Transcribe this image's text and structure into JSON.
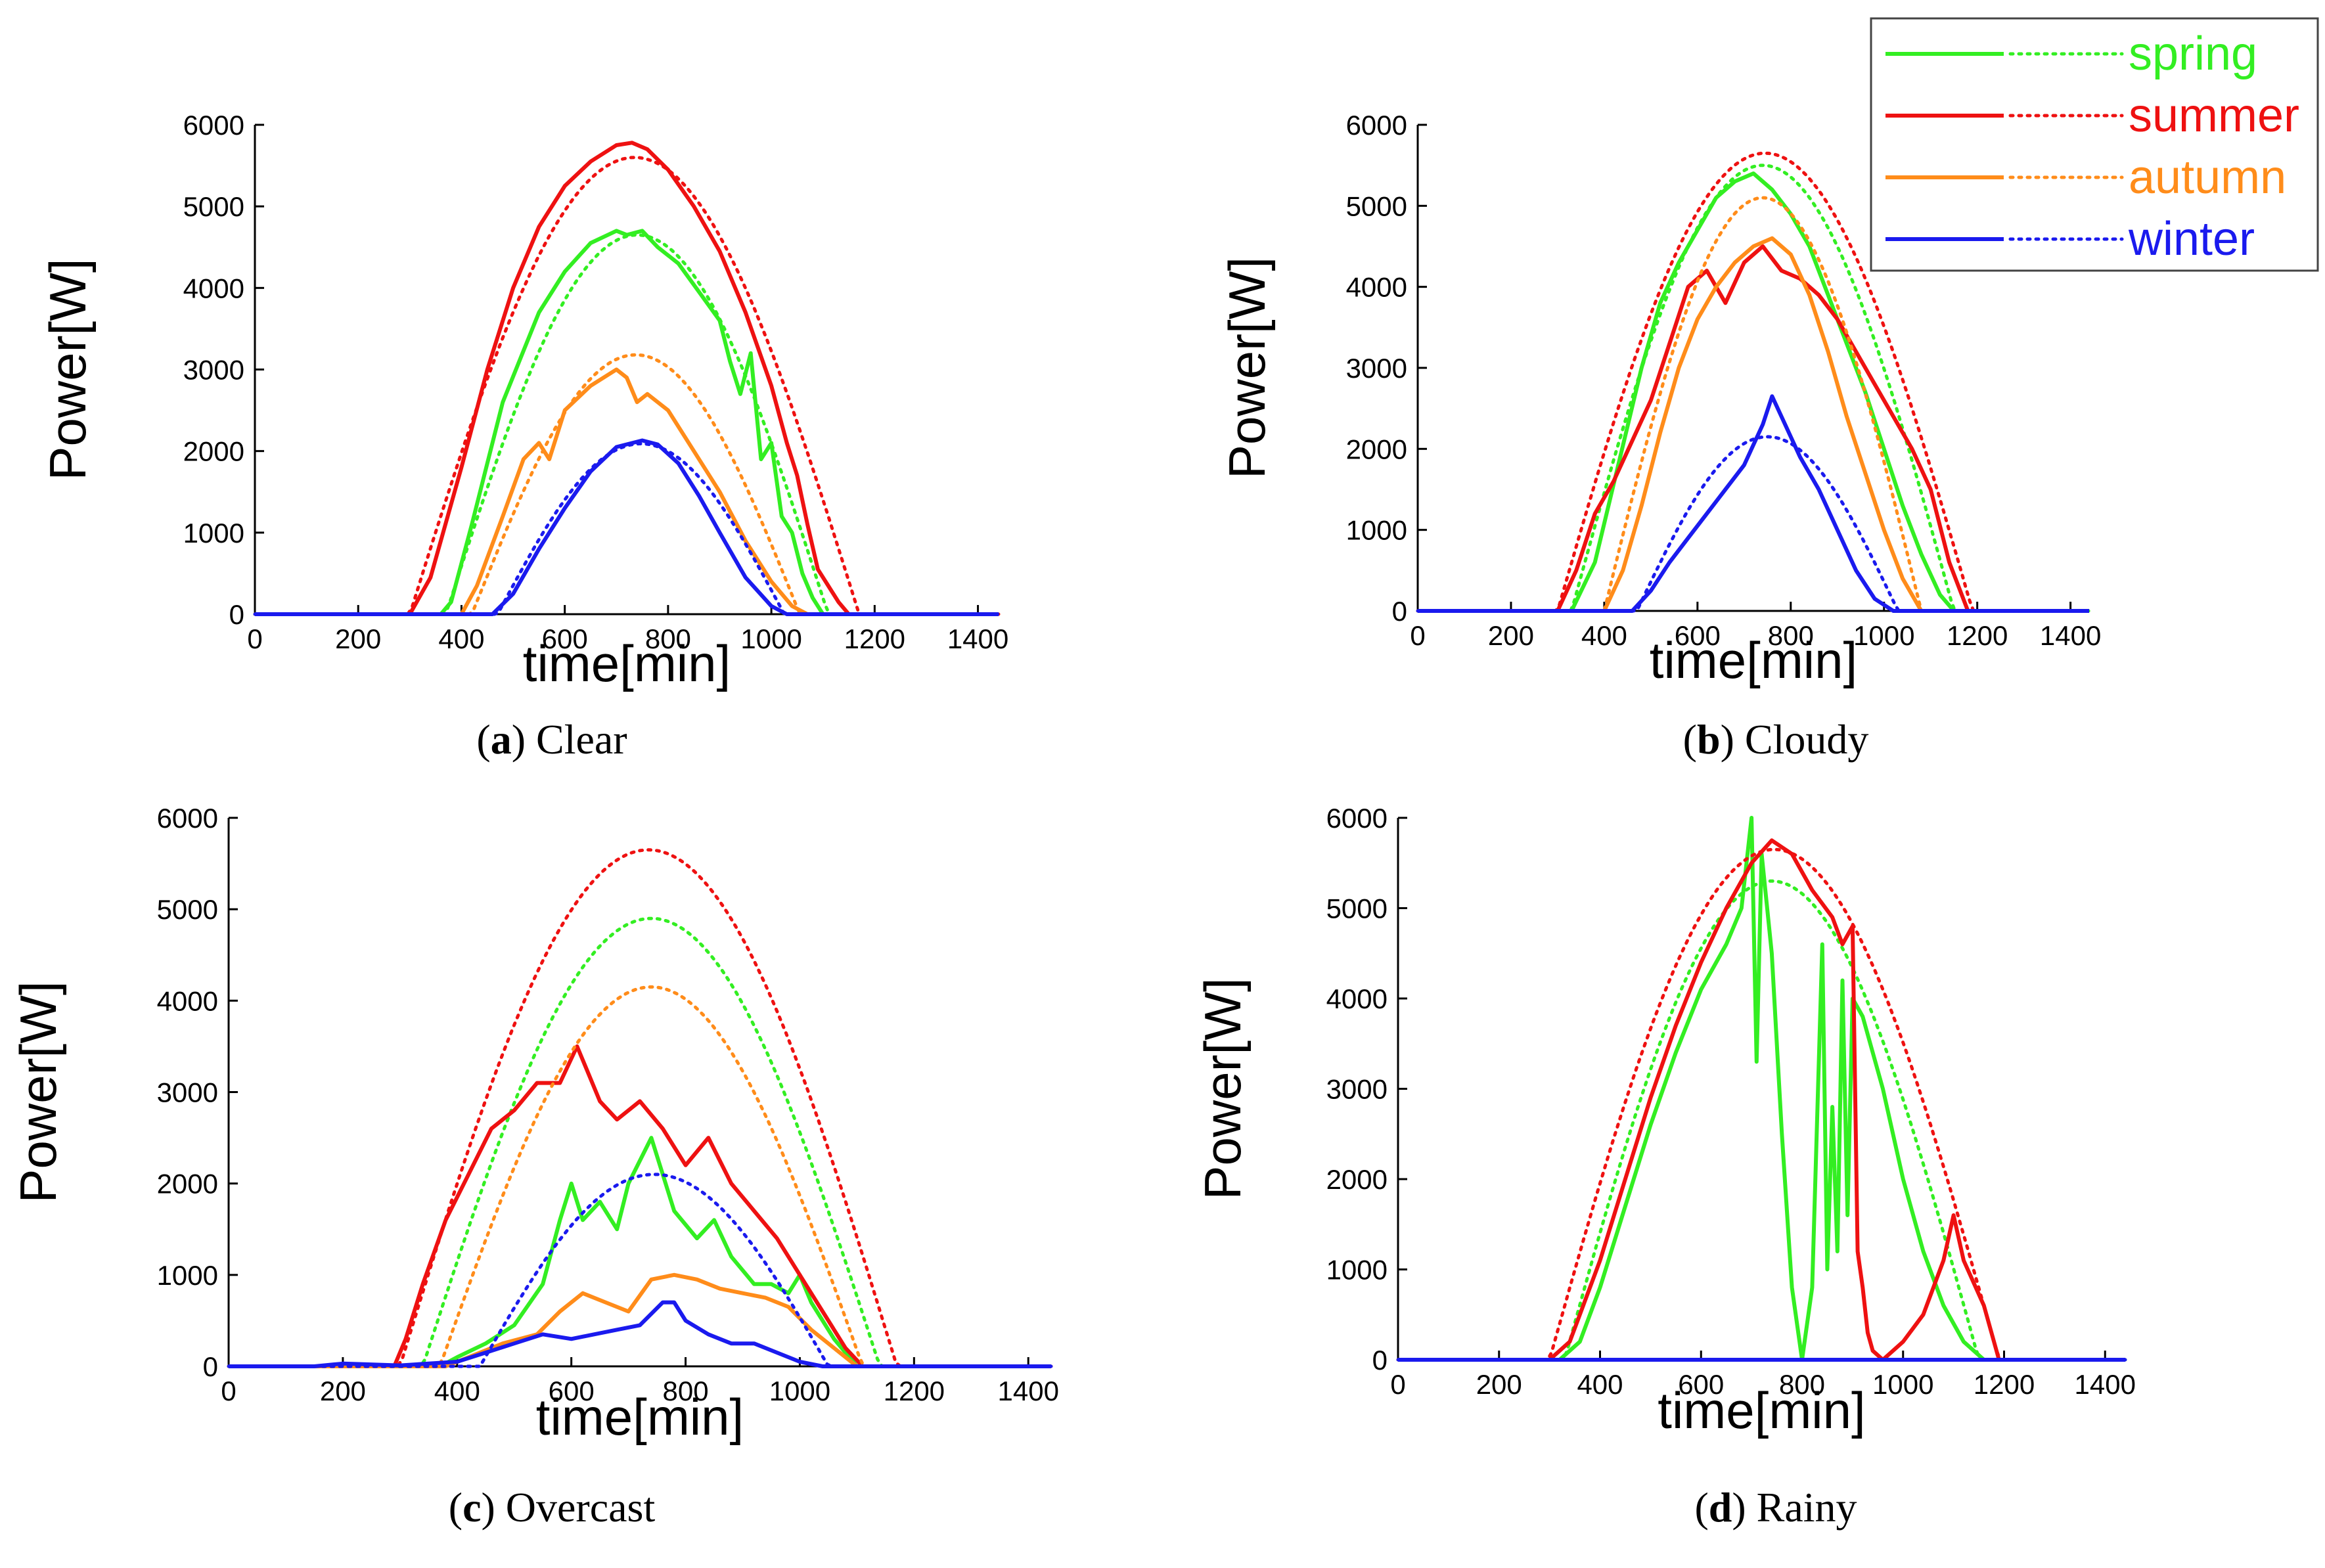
{
  "colors": {
    "spring": "#33ee22",
    "summer": "#ee1111",
    "autumn": "#ff8c1a",
    "winter": "#1a1aee",
    "axis": "#000000"
  },
  "legend": {
    "position": "top-right",
    "entries": [
      {
        "label": "spring",
        "color": "#33ee22"
      },
      {
        "label": "summer",
        "color": "#ee1111"
      },
      {
        "label": "autumn",
        "color": "#ff8c1a"
      },
      {
        "label": "winter",
        "color": "#1a1aee"
      }
    ]
  },
  "chart_data": [
    {
      "id": "a",
      "type": "line",
      "caption_letter": "a",
      "caption_text": "Clear",
      "xlabel": "time[min]",
      "ylabel": "Power[W]",
      "xlim": [
        0,
        1440
      ],
      "ylim": [
        0,
        6000
      ],
      "xticks": [
        0,
        200,
        400,
        600,
        800,
        1000,
        1200,
        1400
      ],
      "yticks": [
        0,
        1000,
        2000,
        3000,
        4000,
        5000,
        6000
      ],
      "series": [
        {
          "name": "spring measured",
          "season": "spring",
          "style": "solid",
          "x": [
            0,
            360,
            380,
            420,
            480,
            550,
            600,
            650,
            700,
            720,
            750,
            780,
            820,
            860,
            900,
            920,
            940,
            960,
            980,
            1000,
            1020,
            1040,
            1060,
            1080,
            1100,
            1440
          ],
          "y": [
            0,
            0,
            150,
            1100,
            2600,
            3700,
            4200,
            4550,
            4700,
            4650,
            4700,
            4500,
            4300,
            3950,
            3600,
            3100,
            2700,
            3200,
            1900,
            2100,
            1200,
            1000,
            500,
            200,
            0,
            0
          ]
        },
        {
          "name": "spring expected",
          "season": "spring",
          "style": "dotted",
          "peak": 4650,
          "t0": 370,
          "t1": 1110
        },
        {
          "name": "summer measured",
          "season": "summer",
          "style": "solid",
          "x": [
            0,
            300,
            340,
            400,
            450,
            500,
            550,
            600,
            650,
            700,
            730,
            760,
            800,
            850,
            900,
            950,
            1000,
            1030,
            1050,
            1070,
            1090,
            1110,
            1130,
            1150,
            1440
          ],
          "y": [
            0,
            0,
            450,
            1800,
            3000,
            4000,
            4750,
            5250,
            5550,
            5750,
            5780,
            5700,
            5450,
            5000,
            4450,
            3700,
            2800,
            2100,
            1700,
            1100,
            550,
            350,
            150,
            0,
            0
          ]
        },
        {
          "name": "summer expected",
          "season": "summer",
          "style": "dotted",
          "peak": 5600,
          "t0": 300,
          "t1": 1170
        },
        {
          "name": "autumn measured",
          "season": "autumn",
          "style": "solid",
          "x": [
            0,
            400,
            430,
            480,
            520,
            550,
            570,
            600,
            650,
            700,
            720,
            740,
            760,
            800,
            850,
            900,
            950,
            1000,
            1040,
            1070,
            1440
          ],
          "y": [
            0,
            0,
            350,
            1200,
            1900,
            2100,
            1900,
            2500,
            2800,
            3000,
            2900,
            2600,
            2700,
            2500,
            2000,
            1500,
            900,
            400,
            100,
            0,
            0
          ]
        },
        {
          "name": "autumn expected",
          "season": "autumn",
          "style": "dotted",
          "peak": 3180,
          "t0": 420,
          "t1": 1055
        },
        {
          "name": "winter measured",
          "season": "winter",
          "style": "solid",
          "x": [
            0,
            460,
            500,
            550,
            600,
            650,
            700,
            750,
            780,
            820,
            860,
            900,
            950,
            1000,
            1030,
            1440
          ],
          "y": [
            0,
            0,
            250,
            800,
            1300,
            1750,
            2050,
            2130,
            2080,
            1850,
            1450,
            1000,
            450,
            100,
            0,
            0
          ]
        },
        {
          "name": "winter expected",
          "season": "winter",
          "style": "dotted",
          "peak": 2090,
          "t0": 470,
          "t1": 1025
        }
      ]
    },
    {
      "id": "b",
      "type": "line",
      "caption_letter": "b",
      "caption_text": "Cloudy",
      "xlabel": "time[min]",
      "ylabel": "Power[W]",
      "xlim": [
        0,
        1440
      ],
      "ylim": [
        0,
        6000
      ],
      "xticks": [
        0,
        200,
        400,
        600,
        800,
        1000,
        1200,
        1400
      ],
      "yticks": [
        0,
        1000,
        2000,
        3000,
        4000,
        5000,
        6000
      ],
      "series": [
        {
          "name": "spring measured",
          "season": "spring",
          "style": "solid",
          "x": [
            0,
            330,
            380,
            430,
            480,
            520,
            560,
            600,
            640,
            680,
            720,
            760,
            800,
            840,
            880,
            920,
            960,
            1000,
            1040,
            1080,
            1120,
            1150,
            1440
          ],
          "y": [
            0,
            0,
            600,
            1800,
            3000,
            3800,
            4300,
            4700,
            5100,
            5300,
            5400,
            5200,
            4900,
            4500,
            3900,
            3300,
            2700,
            2000,
            1300,
            700,
            200,
            0,
            0
          ]
        },
        {
          "name": "spring expected",
          "season": "spring",
          "style": "dotted",
          "peak": 5500,
          "t0": 330,
          "t1": 1150
        },
        {
          "name": "summer measured",
          "season": "summer",
          "style": "solid",
          "x": [
            0,
            300,
            340,
            380,
            420,
            460,
            500,
            540,
            580,
            620,
            660,
            700,
            740,
            780,
            820,
            860,
            900,
            940,
            980,
            1020,
            1060,
            1100,
            1140,
            1180,
            1440
          ],
          "y": [
            0,
            0,
            500,
            1200,
            1600,
            2100,
            2600,
            3300,
            4000,
            4200,
            3800,
            4300,
            4500,
            4200,
            4100,
            3900,
            3600,
            3200,
            2800,
            2400,
            2000,
            1500,
            600,
            0,
            0
          ]
        },
        {
          "name": "summer expected",
          "season": "summer",
          "style": "dotted",
          "peak": 5650,
          "t0": 300,
          "t1": 1190
        },
        {
          "name": "autumn measured",
          "season": "autumn",
          "style": "solid",
          "x": [
            0,
            400,
            440,
            480,
            520,
            560,
            600,
            640,
            680,
            720,
            760,
            800,
            840,
            880,
            920,
            960,
            1000,
            1040,
            1080,
            1440
          ],
          "y": [
            0,
            0,
            500,
            1300,
            2200,
            3000,
            3600,
            4000,
            4300,
            4500,
            4600,
            4400,
            3900,
            3200,
            2400,
            1700,
            1000,
            400,
            0,
            0
          ]
        },
        {
          "name": "autumn expected",
          "season": "autumn",
          "style": "dotted",
          "peak": 5100,
          "t0": 400,
          "t1": 1080
        },
        {
          "name": "winter measured",
          "season": "winter",
          "style": "solid",
          "x": [
            0,
            460,
            500,
            540,
            580,
            620,
            660,
            700,
            740,
            760,
            780,
            820,
            860,
            900,
            940,
            980,
            1020,
            1440
          ],
          "y": [
            0,
            0,
            250,
            600,
            900,
            1200,
            1500,
            1800,
            2300,
            2650,
            2400,
            1900,
            1500,
            1000,
            500,
            150,
            0,
            0
          ]
        },
        {
          "name": "winter expected",
          "season": "winter",
          "style": "dotted",
          "peak": 2150,
          "t0": 470,
          "t1": 1030
        }
      ]
    },
    {
      "id": "c",
      "type": "line",
      "caption_letter": "c",
      "caption_text": "Overcast",
      "xlabel": "time[min]",
      "ylabel": "Power[W]",
      "xlim": [
        0,
        1440
      ],
      "ylim": [
        0,
        6000
      ],
      "xticks": [
        0,
        200,
        400,
        600,
        800,
        1000,
        1200,
        1400
      ],
      "yticks": [
        0,
        1000,
        2000,
        3000,
        4000,
        5000,
        6000
      ],
      "series": [
        {
          "name": "spring measured",
          "season": "spring",
          "style": "solid",
          "x": [
            0,
            370,
            400,
            450,
            500,
            550,
            580,
            600,
            620,
            650,
            680,
            700,
            740,
            780,
            820,
            850,
            880,
            920,
            950,
            980,
            1000,
            1020,
            1060,
            1100,
            1440
          ],
          "y": [
            0,
            0,
            100,
            250,
            450,
            900,
            1600,
            2000,
            1600,
            1800,
            1500,
            2000,
            2500,
            1700,
            1400,
            1600,
            1200,
            900,
            900,
            800,
            1000,
            700,
            300,
            0,
            0
          ]
        },
        {
          "name": "spring expected",
          "season": "spring",
          "style": "dotted",
          "peak": 4900,
          "t0": 340,
          "t1": 1140
        },
        {
          "name": "summer measured",
          "season": "summer",
          "style": "solid",
          "x": [
            0,
            290,
            310,
            340,
            380,
            420,
            460,
            500,
            540,
            580,
            610,
            630,
            650,
            680,
            720,
            760,
            800,
            840,
            880,
            920,
            960,
            1000,
            1040,
            1080,
            1110,
            1440
          ],
          "y": [
            0,
            0,
            300,
            900,
            1600,
            2100,
            2600,
            2800,
            3100,
            3100,
            3500,
            3200,
            2900,
            2700,
            2900,
            2600,
            2200,
            2500,
            2000,
            1700,
            1400,
            1000,
            600,
            200,
            0,
            0
          ]
        },
        {
          "name": "summer expected",
          "season": "summer",
          "style": "dotted",
          "peak": 5650,
          "t0": 300,
          "t1": 1170
        },
        {
          "name": "autumn measured",
          "season": "autumn",
          "style": "solid",
          "x": [
            0,
            380,
            420,
            480,
            540,
            580,
            620,
            660,
            700,
            740,
            780,
            820,
            860,
            900,
            940,
            980,
            1020,
            1060,
            1100,
            1440
          ],
          "y": [
            0,
            0,
            100,
            250,
            350,
            600,
            800,
            700,
            600,
            950,
            1000,
            950,
            850,
            800,
            750,
            650,
            400,
            200,
            0,
            0
          ]
        },
        {
          "name": "autumn expected",
          "season": "autumn",
          "style": "dotted",
          "peak": 4150,
          "t0": 370,
          "t1": 1110
        },
        {
          "name": "winter measured",
          "season": "winter",
          "style": "solid",
          "x": [
            0,
            150,
            200,
            300,
            400,
            450,
            500,
            550,
            600,
            640,
            680,
            720,
            760,
            780,
            800,
            840,
            880,
            920,
            960,
            1000,
            1040,
            1440
          ],
          "y": [
            0,
            0,
            30,
            10,
            50,
            150,
            250,
            350,
            300,
            350,
            400,
            450,
            700,
            700,
            500,
            350,
            250,
            250,
            150,
            50,
            0,
            0
          ]
        },
        {
          "name": "winter expected",
          "season": "winter",
          "style": "dotted",
          "peak": 2100,
          "t0": 440,
          "t1": 1050
        }
      ]
    },
    {
      "id": "d",
      "type": "line",
      "caption_letter": "d",
      "caption_text": "Rainy",
      "xlabel": "time[min]",
      "ylabel": "Power[W]",
      "xlim": [
        0,
        1440
      ],
      "ylim": [
        0,
        6000
      ],
      "xticks": [
        0,
        200,
        400,
        600,
        800,
        1000,
        1200,
        1400
      ],
      "yticks": [
        0,
        1000,
        2000,
        3000,
        4000,
        5000,
        6000
      ],
      "series": [
        {
          "name": "spring measured",
          "season": "spring",
          "style": "solid",
          "x": [
            0,
            320,
            360,
            400,
            450,
            500,
            550,
            600,
            650,
            680,
            700,
            710,
            720,
            740,
            760,
            780,
            800,
            820,
            840,
            850,
            860,
            870,
            880,
            890,
            900,
            920,
            960,
            1000,
            1040,
            1080,
            1120,
            1160,
            1440
          ],
          "y": [
            0,
            0,
            200,
            800,
            1700,
            2600,
            3400,
            4100,
            4600,
            5000,
            6000,
            3300,
            5600,
            4500,
            2500,
            800,
            0,
            800,
            4600,
            1000,
            2800,
            1200,
            4200,
            1600,
            4000,
            3800,
            3000,
            2000,
            1200,
            600,
            200,
            0,
            0
          ]
        },
        {
          "name": "spring expected",
          "season": "spring",
          "style": "dotted",
          "peak": 5300,
          "t0": 330,
          "t1": 1150
        },
        {
          "name": "summer measured",
          "season": "summer",
          "style": "solid",
          "x": [
            0,
            300,
            340,
            400,
            450,
            500,
            550,
            600,
            650,
            700,
            740,
            780,
            820,
            860,
            880,
            900,
            910,
            920,
            930,
            940,
            960,
            1000,
            1040,
            1080,
            1100,
            1120,
            1160,
            1190,
            1440
          ],
          "y": [
            0,
            0,
            200,
            1100,
            2000,
            2900,
            3700,
            4400,
            5000,
            5500,
            5750,
            5600,
            5200,
            4900,
            4600,
            4800,
            1200,
            800,
            300,
            100,
            0,
            200,
            500,
            1100,
            1600,
            1100,
            600,
            0,
            0
          ]
        },
        {
          "name": "summer expected",
          "season": "summer",
          "style": "dotted",
          "peak": 5650,
          "t0": 300,
          "t1": 1190
        },
        {
          "name": "winter measured",
          "season": "winter",
          "style": "solid",
          "x": [
            0,
            1440
          ],
          "y": [
            0,
            0
          ]
        },
        {
          "name": "winter expected",
          "season": "winter",
          "style": "dotted",
          "peak": 0,
          "t0": 0,
          "t1": 1440
        }
      ]
    }
  ]
}
